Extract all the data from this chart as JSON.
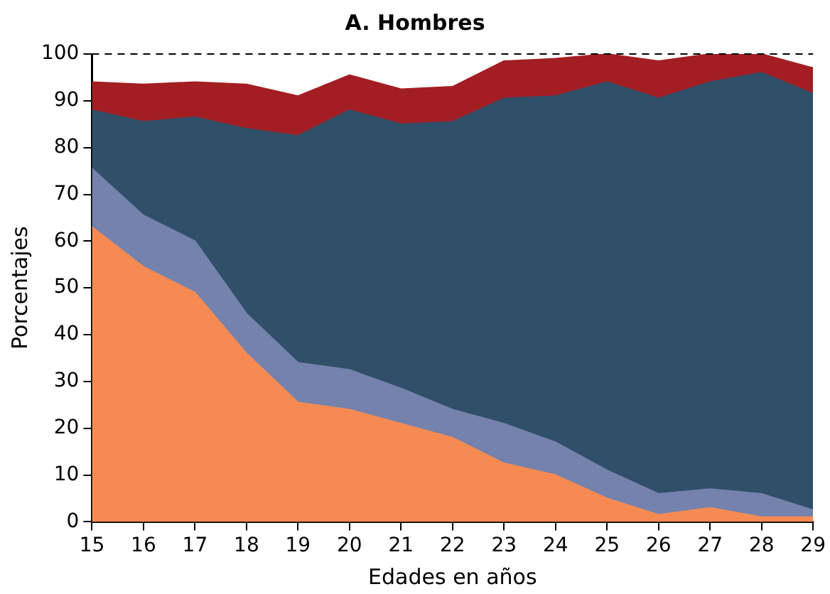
{
  "chart_data": {
    "type": "area",
    "title": "A. Hombres",
    "xlabel": "Edades en años",
    "ylabel": "Porcentajes",
    "stacked": true,
    "x": [
      15,
      16,
      17,
      18,
      19,
      20,
      21,
      22,
      23,
      24,
      25,
      26,
      27,
      28,
      29
    ],
    "series": [
      {
        "color": "#f58b53",
        "values": [
          63,
          54.5,
          49,
          36,
          25.5,
          24,
          21,
          18,
          12.5,
          10,
          5,
          1.5,
          3,
          1,
          1
        ]
      },
      {
        "color": "#7482ad",
        "values": [
          12.5,
          11,
          11,
          8.5,
          8.5,
          8.5,
          7.5,
          6,
          8.5,
          7,
          6,
          4.5,
          4,
          5,
          1.5
        ]
      },
      {
        "color": "#304f69",
        "values": [
          12.5,
          20,
          26.5,
          39.5,
          48.5,
          55.5,
          56.5,
          61.5,
          69.5,
          74,
          83,
          84.5,
          87,
          90,
          89
        ]
      },
      {
        "color": "#a31e23",
        "values": [
          6,
          8,
          7.5,
          9.5,
          8.5,
          7.5,
          7.5,
          7.5,
          8,
          8,
          6,
          8,
          6,
          4,
          5.5
        ]
      }
    ],
    "xlim": [
      15,
      29
    ],
    "xticks": [
      15,
      16,
      17,
      18,
      19,
      20,
      21,
      22,
      23,
      24,
      25,
      26,
      27,
      28,
      29
    ],
    "ylim": [
      0,
      100
    ],
    "yticks": [
      0,
      10,
      20,
      30,
      40,
      50,
      60,
      70,
      80,
      90,
      100
    ],
    "ref_lines": [
      {
        "axis": "y",
        "value": 100,
        "line_style": "dashed",
        "color": "#000000"
      }
    ],
    "grid": false,
    "legend": false
  }
}
